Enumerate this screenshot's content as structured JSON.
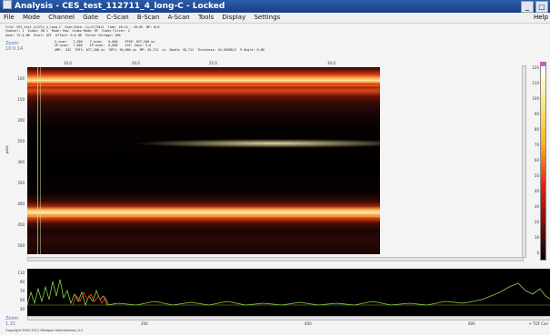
{
  "window": {
    "title": "Analysis - CES_test_112711_4_long-C - Locked",
    "btn_min": "_",
    "btn_max": "□",
    "btn_close": "×"
  },
  "menu": [
    "File",
    "Mode",
    "Channel",
    "Gate",
    "C-Scan",
    "B-Scan",
    "A-Scan",
    "Tools",
    "Display",
    "Settings"
  ],
  "menu_help": "Help",
  "info": {
    "l1": "File: CES_test_112711_4_long-C  Scan Date: 11/27/2011  Time: 20:14 - 10:05  WP: N/A",
    "l2": "Channel: 1  Index: 5B 1  Mode: Raw  Video Mode: RF  Video Filter: 2",
    "l3": "Gain: 72.0 dB  Start: OFF  Offset: 0.0 dB  Pulser Voltage: 400",
    "r1": "X-scan:   7,500    Y-scan:   0,000    ETOF: 027,200 us",
    "r2": "IP-scan:  7,000    IP-scan:  0,000    IoF: Gain: 5,0",
    "r3": "AMP:  252  TOF1: 077,200 us  TOF2: 50,000 us  MP: 45,711  in  Depth: 45,711  Thickness: 44,45580/2  9 Angle: 0,00"
  },
  "zoom_label": "Zoom",
  "zoom_value": "10:0.14",
  "xaxis_top": [
    "10,0",
    "20,0",
    "25,0",
    "30,0"
  ],
  "yaxis": [
    "100",
    "150",
    "200",
    "250",
    "300",
    "350",
    "400",
    "450",
    "500"
  ],
  "ylabel": "μsec",
  "cbar_labels": [
    "120",
    "110",
    "100",
    "90",
    "80",
    "70",
    "60",
    "50",
    "40",
    "30",
    "20",
    "10",
    "0"
  ],
  "ayaxis": [
    "110",
    "90",
    "70",
    "50",
    "30"
  ],
  "zoom2_label": "Zoom",
  "zoom2_value": "1.31",
  "xbottom": [
    "200",
    "400",
    "600"
  ],
  "tof_label": "> TOF Con",
  "copyright": "Copyright 2002-2011 Westpoe International, LLC"
}
